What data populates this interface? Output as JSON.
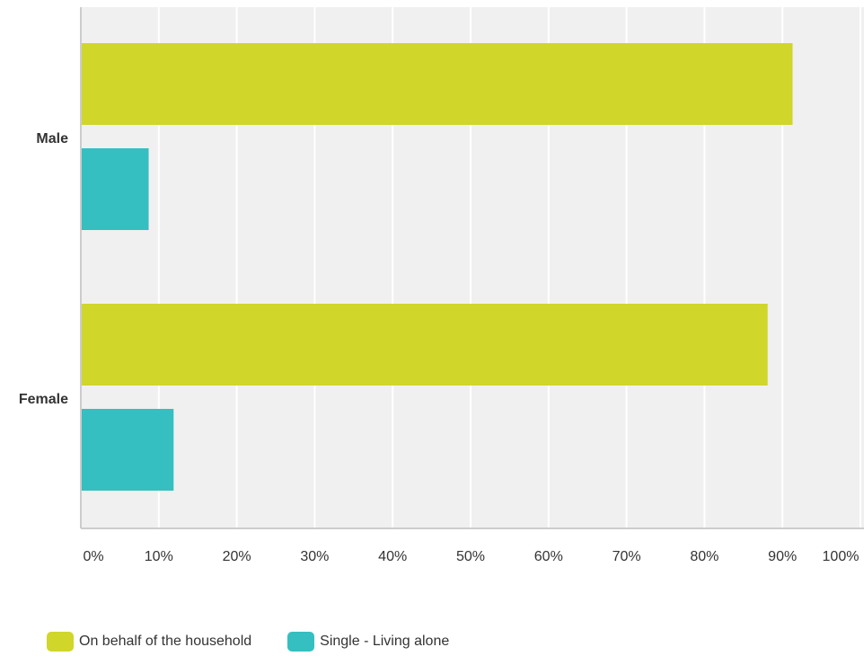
{
  "chart_data": {
    "type": "bar",
    "orientation": "horizontal",
    "categories": [
      "Male",
      "Female"
    ],
    "series": [
      {
        "name": "On behalf of the household",
        "values": [
          91.3,
          88.1
        ],
        "color": "#d0d62a"
      },
      {
        "name": "Single - Living alone",
        "values": [
          8.7,
          11.9
        ],
        "color": "#35bfc0"
      }
    ],
    "xlim": [
      0,
      100
    ],
    "xticks": [
      "0%",
      "10%",
      "20%",
      "30%",
      "40%",
      "50%",
      "60%",
      "70%",
      "80%",
      "90%",
      "100%"
    ],
    "grid": true,
    "legend_position": "bottom-left",
    "title": "",
    "xlabel": "",
    "ylabel": ""
  }
}
